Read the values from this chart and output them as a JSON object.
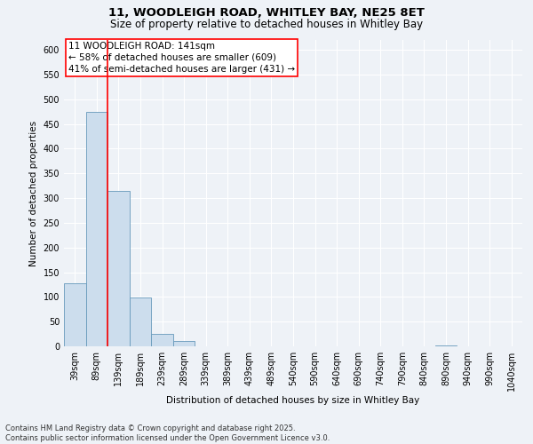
{
  "title_line1": "11, WOODLEIGH ROAD, WHITLEY BAY, NE25 8ET",
  "title_line2": "Size of property relative to detached houses in Whitley Bay",
  "xlabel": "Distribution of detached houses by size in Whitley Bay",
  "ylabel": "Number of detached properties",
  "bar_color": "#ccdded",
  "bar_edge_color": "#6699bb",
  "bin_labels": [
    "39sqm",
    "89sqm",
    "139sqm",
    "189sqm",
    "239sqm",
    "289sqm",
    "339sqm",
    "389sqm",
    "439sqm",
    "489sqm",
    "540sqm",
    "590sqm",
    "640sqm",
    "690sqm",
    "740sqm",
    "790sqm",
    "840sqm",
    "890sqm",
    "940sqm",
    "990sqm",
    "1040sqm"
  ],
  "bar_values": [
    128,
    475,
    315,
    98,
    25,
    10,
    0,
    0,
    0,
    0,
    0,
    0,
    0,
    0,
    0,
    0,
    0,
    2,
    0,
    0,
    0
  ],
  "property_line_x": 2.0,
  "property_line_label": "11 WOODLEIGH ROAD: 141sqm",
  "annotation_line2": "← 58% of detached houses are smaller (609)",
  "annotation_line3": "41% of semi-detached houses are larger (431) →",
  "ylim": [
    0,
    620
  ],
  "yticks": [
    0,
    50,
    100,
    150,
    200,
    250,
    300,
    350,
    400,
    450,
    500,
    550,
    600
  ],
  "footnote1": "Contains HM Land Registry data © Crown copyright and database right 2025.",
  "footnote2": "Contains public sector information licensed under the Open Government Licence v3.0.",
  "bg_color": "#eef2f7",
  "plot_bg_color": "#eef2f7",
  "grid_color": "#ffffff",
  "title_fontsize": 9.5,
  "subtitle_fontsize": 8.5,
  "label_fontsize": 7.5,
  "tick_fontsize": 7,
  "annot_fontsize": 7.5,
  "footnote_fontsize": 6
}
